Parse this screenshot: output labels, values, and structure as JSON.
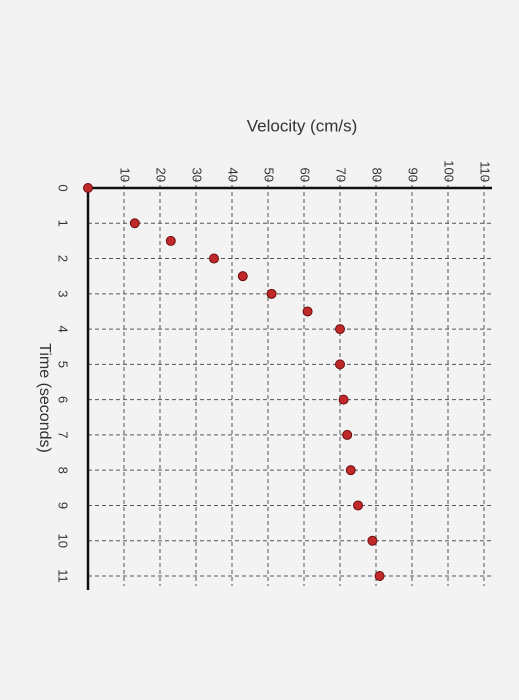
{
  "chart_data": {
    "type": "scatter",
    "xlabel": "Time (seconds)",
    "ylabel": "Velocity (cm/s)",
    "x": [
      0,
      1,
      1.5,
      2,
      2.5,
      3,
      3.5,
      4,
      5,
      6,
      7,
      8,
      9,
      10,
      11
    ],
    "series": [
      {
        "name": null,
        "color": "#c0282a",
        "values": [
          0,
          13,
          23,
          35,
          43,
          51,
          61,
          70,
          70,
          71,
          72,
          73,
          75,
          79,
          81
        ]
      }
    ],
    "xlim": [
      0,
      11
    ],
    "ylim": [
      0,
      110
    ],
    "xticks": [
      0,
      1,
      2,
      3,
      4,
      5,
      6,
      7,
      8,
      9,
      10,
      11
    ],
    "yticks": [
      10,
      20,
      30,
      40,
      50,
      60,
      70,
      80,
      90,
      100,
      110
    ],
    "grid": true
  }
}
